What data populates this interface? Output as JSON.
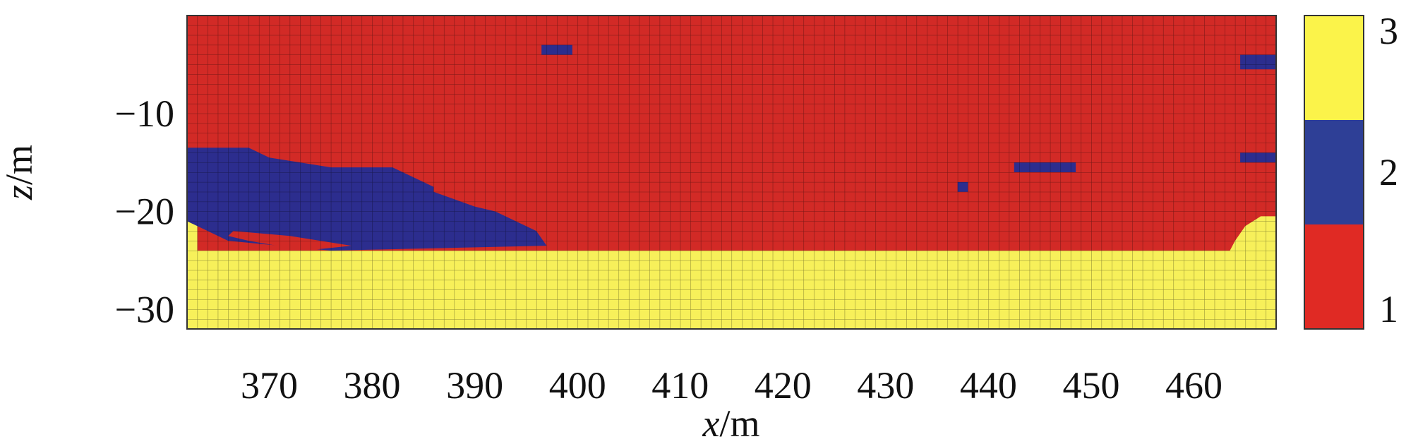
{
  "chart_data": {
    "type": "heatmap",
    "title": "",
    "xlabel": "x/m",
    "ylabel": "z/m",
    "xlabel_italic": "x",
    "xlabel_unit": "/m",
    "ylabel_italic": "z",
    "ylabel_unit": "/m",
    "xlim": [
      362,
      468
    ],
    "ylim": [
      -32,
      0
    ],
    "x_ticks": [
      370,
      380,
      390,
      400,
      410,
      420,
      430,
      440,
      450,
      460
    ],
    "x_tick_labels": [
      "370",
      "380",
      "390",
      "400",
      "410",
      "420",
      "430",
      "440",
      "450",
      "460"
    ],
    "y_ticks": [
      -10,
      -20,
      -30
    ],
    "y_tick_labels": [
      "−10",
      "−20",
      "−30"
    ],
    "grid": true,
    "cell_size_m": 1,
    "categories": [
      1,
      2,
      3
    ],
    "colorbar": {
      "ticks": [
        "1",
        "2",
        "3"
      ],
      "colors": [
        "#e02a24",
        "#2e3f96",
        "#fbf34a"
      ]
    },
    "colors": {
      "1": "#d22a26",
      "2": "#2c2d8e",
      "3": "#f7f05a"
    },
    "default_class": 1,
    "regions": [
      {
        "class": 3,
        "polygon": [
          [
            362,
            -32
          ],
          [
            468,
            -32
          ],
          [
            468,
            -20.5
          ],
          [
            466.5,
            -20.5
          ],
          [
            465,
            -21.5
          ],
          [
            464,
            -23
          ],
          [
            463.5,
            -24
          ],
          [
            362,
            -24
          ]
        ]
      },
      {
        "class": 3,
        "polygon": [
          [
            362,
            -24
          ],
          [
            363,
            -24
          ],
          [
            363,
            -21
          ],
          [
            362,
            -21
          ]
        ]
      },
      {
        "class": 2,
        "polygon": [
          [
            362,
            -13.5
          ],
          [
            368,
            -13.5
          ],
          [
            370,
            -14.5
          ],
          [
            373,
            -15
          ],
          [
            376,
            -15.5
          ],
          [
            382,
            -15.5
          ],
          [
            384,
            -16.5
          ],
          [
            386,
            -17.5
          ],
          [
            386,
            -18
          ],
          [
            390,
            -19.5
          ],
          [
            392,
            -20
          ],
          [
            394,
            -21
          ],
          [
            396,
            -22
          ],
          [
            397,
            -23.5
          ],
          [
            376,
            -24
          ],
          [
            366,
            -23
          ],
          [
            363,
            -21.5
          ],
          [
            362,
            -21
          ]
        ]
      },
      {
        "class": 1,
        "polygon": [
          [
            366.5,
            -22
          ],
          [
            372,
            -22.5
          ],
          [
            378,
            -23.5
          ],
          [
            373.5,
            -24
          ],
          [
            368,
            -23
          ],
          [
            366,
            -22.5
          ]
        ]
      },
      {
        "class": 2,
        "polygon": [
          [
            396.5,
            -3
          ],
          [
            399.5,
            -3
          ],
          [
            399.5,
            -4
          ],
          [
            396.5,
            -4
          ]
        ]
      },
      {
        "class": 2,
        "polygon": [
          [
            442.5,
            -15
          ],
          [
            448.5,
            -15
          ],
          [
            448.5,
            -16
          ],
          [
            442.5,
            -16
          ]
        ]
      },
      {
        "class": 2,
        "polygon": [
          [
            437,
            -17
          ],
          [
            438,
            -17
          ],
          [
            438,
            -18
          ],
          [
            437,
            -18
          ]
        ]
      },
      {
        "class": 2,
        "polygon": [
          [
            464.5,
            -4
          ],
          [
            468,
            -4
          ],
          [
            468,
            -5.5
          ],
          [
            464.5,
            -5.5
          ]
        ]
      },
      {
        "class": 2,
        "polygon": [
          [
            464.5,
            -14
          ],
          [
            468,
            -14
          ],
          [
            468,
            -15
          ],
          [
            464.5,
            -15
          ]
        ]
      }
    ]
  }
}
